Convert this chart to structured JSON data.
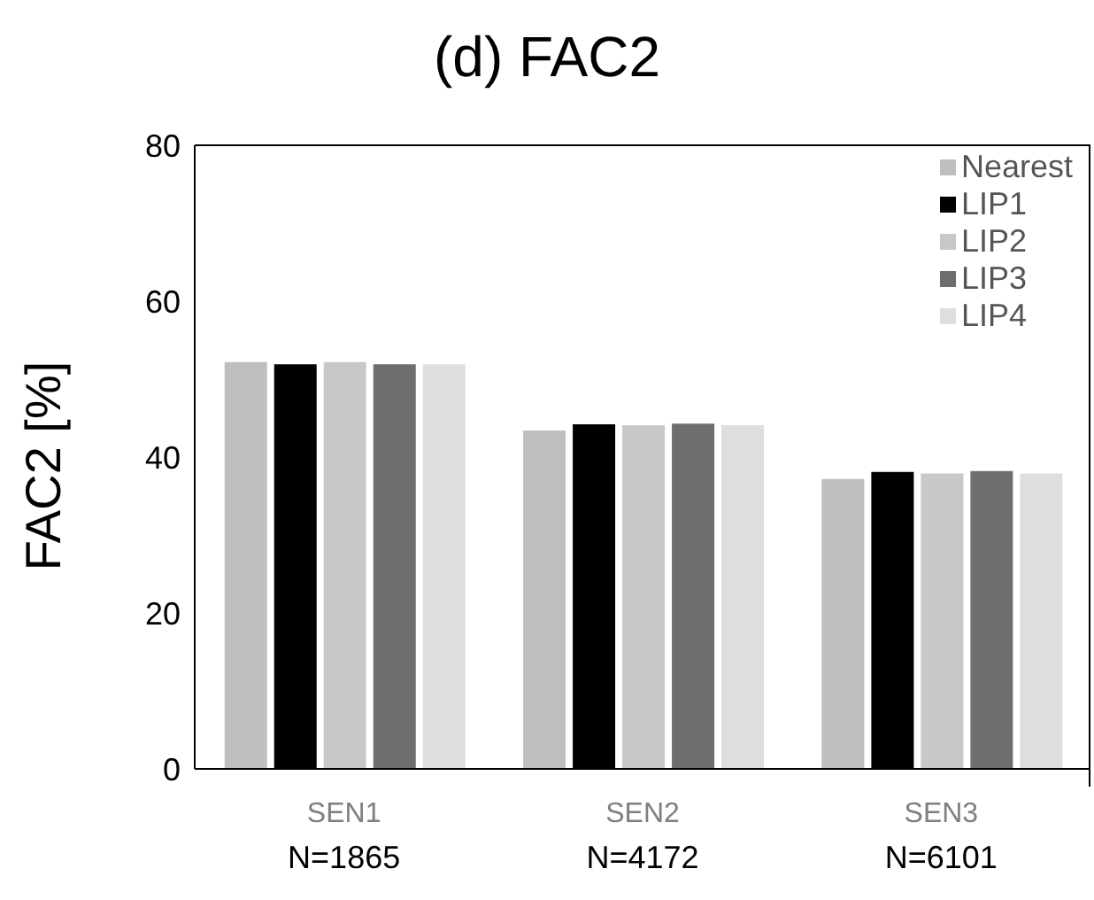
{
  "chart_data": {
    "type": "bar",
    "title": "(d) FAC2",
    "ylabel": "FAC2 [%]",
    "categories": [
      "SEN1",
      "SEN2",
      "SEN3"
    ],
    "annotations": [
      "N=1865",
      "N=4172",
      "N=6101"
    ],
    "series": [
      {
        "name": "Nearest",
        "color": "#bfbfbf",
        "values": [
          52.2,
          43.4,
          37.2
        ]
      },
      {
        "name": "LIP1",
        "color": "#000000",
        "values": [
          51.9,
          44.2,
          38.1
        ]
      },
      {
        "name": "LIP2",
        "color": "#c8c8c8",
        "values": [
          52.2,
          44.1,
          37.9
        ]
      },
      {
        "name": "LIP3",
        "color": "#6e6e6e",
        "values": [
          51.9,
          44.3,
          38.2
        ]
      },
      {
        "name": "LIP4",
        "color": "#dedede",
        "values": [
          51.9,
          44.1,
          37.9
        ]
      }
    ],
    "ylim": [
      0,
      80
    ],
    "yticks": [
      0,
      20,
      40,
      60,
      80
    ],
    "legend": "top right"
  }
}
